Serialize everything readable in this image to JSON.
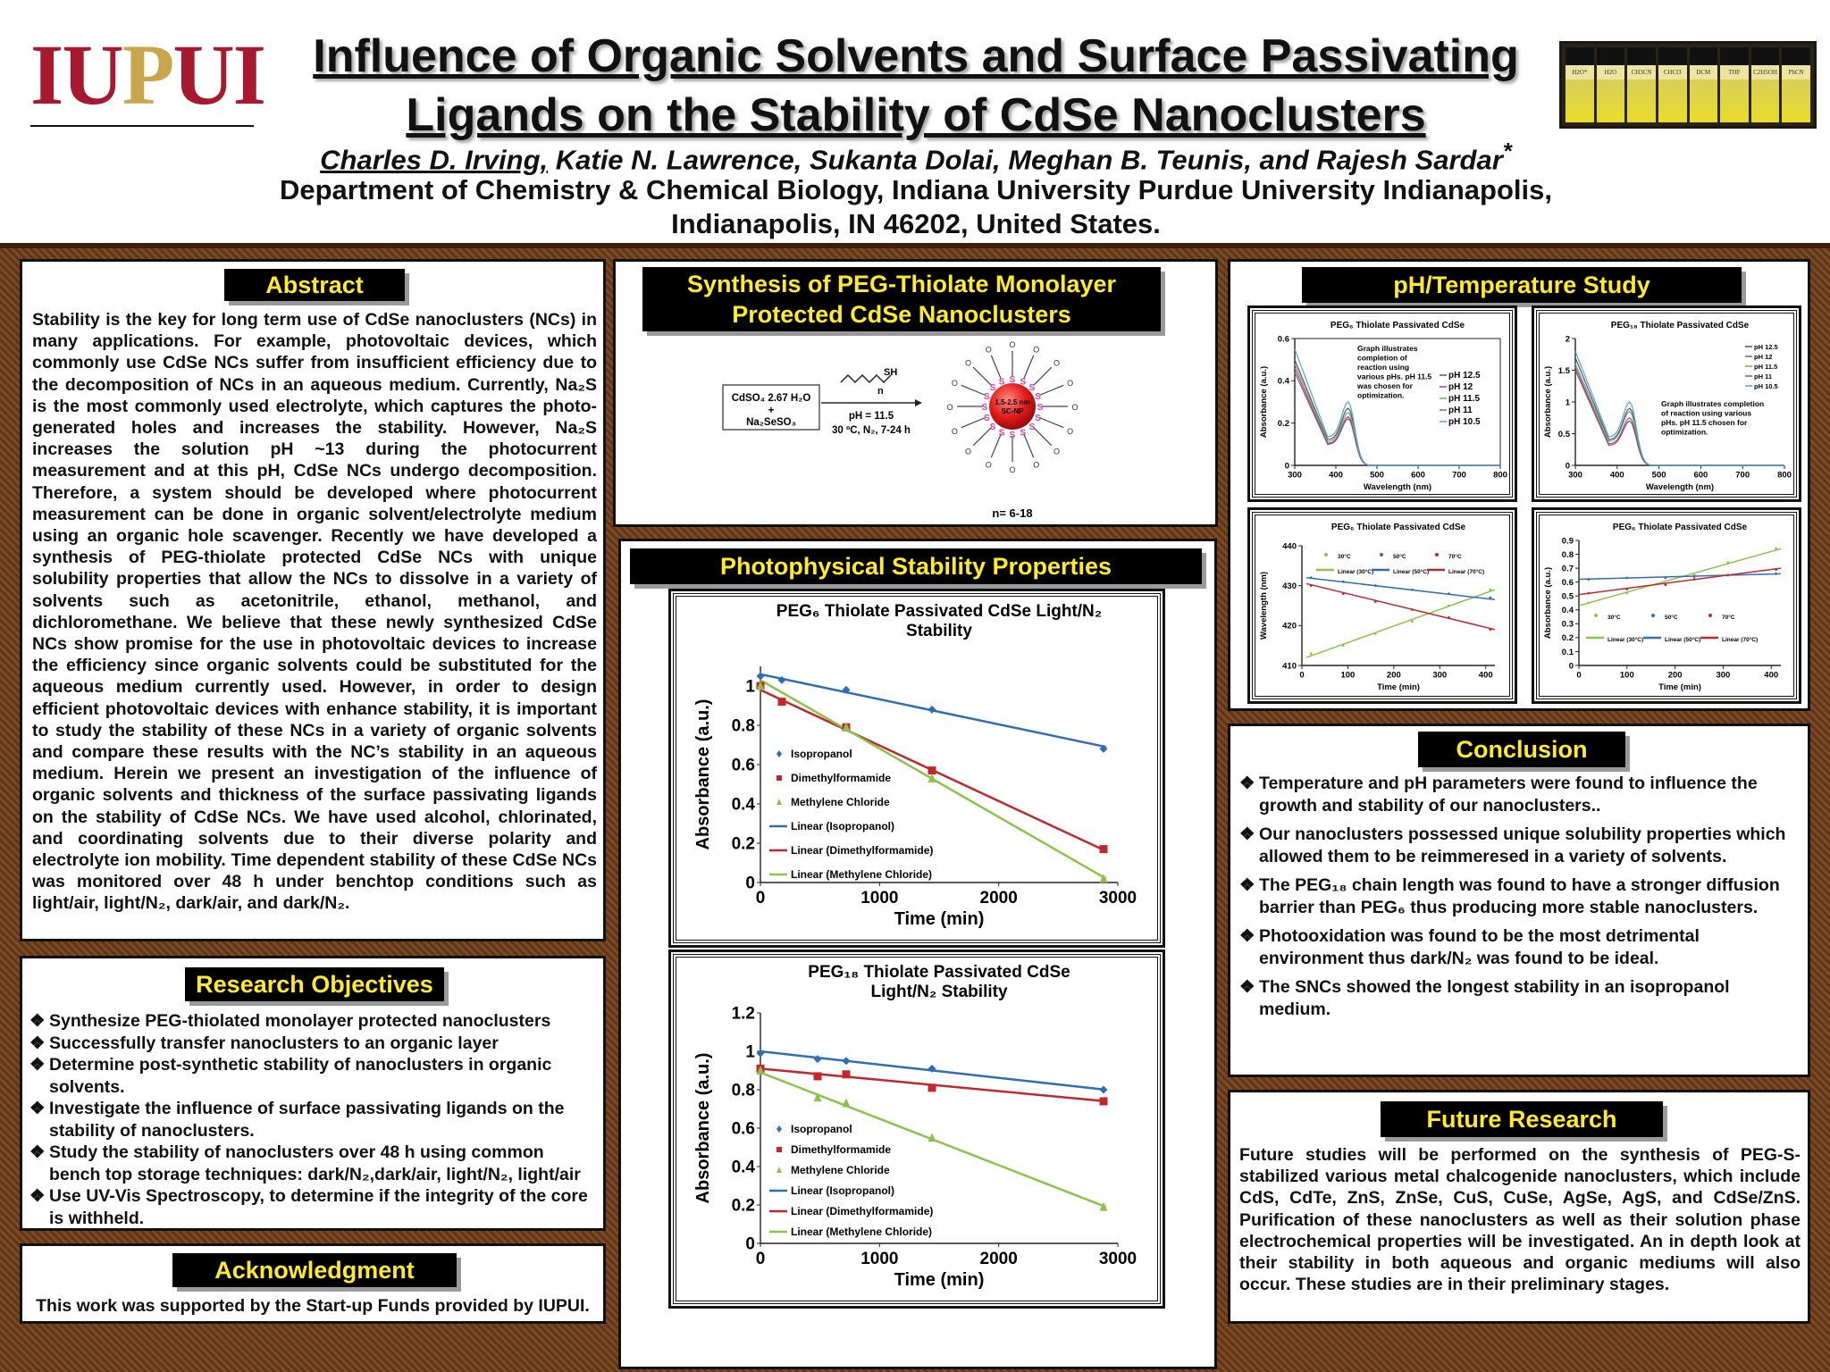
{
  "header": {
    "logo": {
      "iu": "IU",
      "p": "P",
      "ui": "UI"
    },
    "title_line1": "Influence of Organic Solvents and Surface Passivating",
    "title_line2": "Ligands on the Stability of CdSe Nanoclusters",
    "first_author": "Charles D. Irving,",
    "other_authors": " Katie N. Lawrence, Sukanta Dolai, Meghan B. Teunis, and Rajesh Sardar",
    "author_mark": "*",
    "dept_line1": "Department of Chemistry & Chemical Biology, Indiana University Purdue University Indianapolis,",
    "dept_line2": "Indianapolis, IN 46202, United States.",
    "vial_labels": [
      "H2O*",
      "H2O",
      "CH3CN",
      "CHCl3",
      "DCM",
      "THF",
      "C2H5OH",
      "PhCN"
    ]
  },
  "colors": {
    "heading_bg": "#000000",
    "heading_text": "#ffea2c",
    "isopropanol": "#2f6db5",
    "dmf": "#c0282d",
    "mecl": "#8bc34a",
    "bg_brown": "#6b3f1f"
  },
  "abstract": {
    "heading": "Abstract",
    "text": "Stability is the key for long term use of CdSe nanoclusters (NCs) in many applications. For example, photovoltaic devices, which commonly use CdSe NCs suffer from insufficient efficiency due to the decomposition of NCs in an aqueous medium. Currently, Na₂S is the most commonly used electrolyte, which captures the photo-generated holes and increases the stability. However, Na₂S increases the solution pH ~13 during the photocurrent measurement and at this pH, CdSe NCs undergo decomposition. Therefore, a system should be developed where photocurrent measurement can be done in organic solvent/electrolyte medium using an organic hole scavenger. Recently we have developed a synthesis of PEG-thiolate protected CdSe NCs with unique solubility properties that allow the NCs to dissolve in a variety of solvents such as acetonitrile, ethanol, methanol, and dichloromethane. We believe that these newly synthesized CdSe NCs show promise for the use in photovoltaic devices to increase the efficiency since organic solvents could be substituted for the aqueous medium currently used. However, in order to design efficient photovoltaic devices with enhance stability, it is important to study the stability of these NCs in a variety of organic solvents and compare these results with the NC’s stability in an aqueous medium. Herein we present an investigation of the influence of organic solvents and thickness of the surface passivating ligands on the stability of CdSe NCs. We have used alcohol, chlorinated, and coordinating solvents due to their diverse polarity and electrolyte ion mobility. Time dependent stability of these CdSe NCs was monitored over 48 h under benchtop conditions such as light/air, light/N₂, dark/air, and dark/N₂."
  },
  "objectives": {
    "heading": "Research Objectives",
    "mark": "❖",
    "items": [
      "Synthesize PEG-thiolated monolayer protected nanoclusters",
      "Successfully transfer nanoclusters to an organic layer",
      "Determine post-synthetic stability of nanoclusters in organic solvents.",
      "Investigate the influence of surface passivating ligands on the stability of nanoclusters.",
      "Study the stability of nanoclusters over 48 h using common bench top storage techniques: dark/N₂,dark/air, light/N₂, light/air",
      "Use UV-Vis Spectroscopy, to determine if the integrity of the core is withheld."
    ]
  },
  "acknowledgment": {
    "heading": "Acknowledgment",
    "text": "This work was supported by the Start-up Funds provided by IUPUI."
  },
  "synthesis": {
    "heading_line1": "Synthesis of PEG-Thiolate Monolayer",
    "heading_line2": "Protected CdSe Nanoclusters",
    "reagent_line1": "CdSO₄ 2.67 H₂O",
    "reagent_line2": "+",
    "reagent_line3": "Na₂SeSO₃",
    "sh": "SH",
    "n": "n",
    "cond1": "pH = 11.5",
    "cond2": "30 ºC, N₂, 7-24 h",
    "core_label1": "1.5-2.5 nm",
    "core_label2": "SC-NP",
    "s": "S",
    "o": "O",
    "n_range": "n= 6-18"
  },
  "photophys": {
    "heading": "Photophysical Stability Properties"
  },
  "ph_temp": {
    "heading": "pH/Temperature Study"
  },
  "conclusion": {
    "heading": "Conclusion",
    "mark": "❖",
    "items": [
      "Temperature and pH parameters were found to influence the growth and stability of our nanoclusters..",
      "Our nanoclusters possessed unique solubility properties which allowed them to be reimmeresed in a variety of solvents.",
      "The PEG₁₈ chain length was found to have a stronger diffusion barrier than PEG₆ thus producing more stable nanoclusters.",
      "Photooxidation was found to be the most detrimental environment thus dark/N₂ was found to be ideal.",
      "The SNCs showed the longest stability in an isopropanol medium."
    ]
  },
  "future": {
    "heading": "Future Research",
    "text": "Future studies will be performed on the synthesis of PEG-S-stabilized various metal chalcogenide nanoclusters, which include CdS, CdTe, ZnS, ZnSe, CuS, CuSe, AgSe, AgS, and CdSe/ZnS. Purification of these nanoclusters as well as their solution phase electrochemical properties will be investigated. An in depth look at their stability in both aqueous and organic mediums will also occur. These studies are in their preliminary stages."
  },
  "chart_data": [
    {
      "id": "peg6_light",
      "type": "scatter",
      "title": "PEG₆ Thiolate Passivated CdSe Light/N₂ Stability",
      "xlabel": "Time (min)",
      "ylabel": "Absorbance (a.u.)",
      "xlim": [
        0,
        3000
      ],
      "ylim": [
        0,
        1.1
      ],
      "xticks": [
        0,
        1000,
        2000,
        3000
      ],
      "yticks": [
        0,
        0.2,
        0.4,
        0.6,
        0.8,
        1
      ],
      "legend_position": "left",
      "series": [
        {
          "name": "Isopropanol",
          "marker": "diamond",
          "color": "#2f6db5",
          "x": [
            0,
            180,
            720,
            1440,
            2880
          ],
          "y": [
            1.05,
            1.03,
            0.98,
            0.88,
            0.68
          ]
        },
        {
          "name": "Dimethylformamide",
          "marker": "square",
          "color": "#c0282d",
          "x": [
            0,
            180,
            720,
            1440,
            2880
          ],
          "y": [
            1.0,
            0.92,
            0.79,
            0.57,
            0.17
          ]
        },
        {
          "name": "Methylene Chloride",
          "marker": "triangle",
          "color": "#8bc34a",
          "x": [
            0,
            720,
            1440,
            2880
          ],
          "y": [
            1.0,
            0.79,
            0.53,
            0.02
          ]
        }
      ],
      "trendlines": [
        {
          "name": "Linear (Isopropanol)",
          "color": "#2f6db5",
          "x": [
            0,
            2900
          ],
          "y": [
            1.06,
            0.69
          ]
        },
        {
          "name": "Linear (Dimethylformamide)",
          "color": "#c0282d",
          "x": [
            0,
            2900
          ],
          "y": [
            0.98,
            0.16
          ]
        },
        {
          "name": "Linear (Methylene Chloride)",
          "color": "#8bc34a",
          "x": [
            0,
            2900
          ],
          "y": [
            1.03,
            0.02
          ]
        }
      ]
    },
    {
      "id": "peg18_light",
      "type": "scatter",
      "title": "PEG₁₈ Thiolate Passivated CdSe Light/N₂ Stability",
      "xlabel": "Time (min)",
      "ylabel": "Absorbance (a.u.)",
      "xlim": [
        0,
        3000
      ],
      "ylim": [
        0,
        1.2
      ],
      "xticks": [
        0,
        1000,
        2000,
        3000
      ],
      "yticks": [
        0,
        0.2,
        0.4,
        0.6,
        0.8,
        1,
        1.2
      ],
      "legend_position": "left",
      "series": [
        {
          "name": "Isopropanol",
          "marker": "diamond",
          "color": "#2f6db5",
          "x": [
            0,
            480,
            720,
            1440,
            2880
          ],
          "y": [
            0.99,
            0.96,
            0.95,
            0.91,
            0.8
          ]
        },
        {
          "name": "Dimethylformamide",
          "marker": "square",
          "color": "#c0282d",
          "x": [
            0,
            480,
            720,
            1440,
            2880
          ],
          "y": [
            0.91,
            0.87,
            0.88,
            0.81,
            0.74
          ]
        },
        {
          "name": "Methylene Chloride",
          "marker": "triangle",
          "color": "#8bc34a",
          "x": [
            0,
            480,
            720,
            1440,
            2880
          ],
          "y": [
            0.9,
            0.76,
            0.73,
            0.55,
            0.19
          ]
        }
      ],
      "trendlines": [
        {
          "name": "Linear (Isopropanol)",
          "color": "#2f6db5",
          "x": [
            0,
            2900
          ],
          "y": [
            1.0,
            0.8
          ]
        },
        {
          "name": "Linear (Dimethylformamide)",
          "color": "#c0282d",
          "x": [
            0,
            2900
          ],
          "y": [
            0.91,
            0.74
          ]
        },
        {
          "name": "Linear (Methylene Chloride)",
          "color": "#8bc34a",
          "x": [
            0,
            2900
          ],
          "y": [
            0.89,
            0.19
          ]
        }
      ]
    },
    {
      "id": "peg6_ph",
      "type": "line",
      "title": "PEG₆ Thiolate Passivated CdSe",
      "xlabel": "Wavelength (nm)",
      "ylabel": "Absorbance (a.u.)",
      "xlim": [
        300,
        800
      ],
      "ylim": [
        0,
        0.6
      ],
      "xticks": [
        300,
        400,
        500,
        600,
        700,
        800
      ],
      "yticks": [
        0,
        0.2,
        0.4,
        0.6
      ],
      "annotation": "Graph illustrates completion of reaction using various pHs. pH 11.5 was chosen for optimization.",
      "series": [
        {
          "name": "pH 12.5",
          "color": "#4b4f9a",
          "peak": 0.27,
          "start": 0.5
        },
        {
          "name": "pH 12",
          "color": "#b0484a",
          "peak": 0.23,
          "start": 0.46
        },
        {
          "name": "pH 11.5",
          "color": "#84a84c",
          "peak": 0.25,
          "start": 0.48
        },
        {
          "name": "pH 11",
          "color": "#7a5aa0",
          "peak": 0.22,
          "start": 0.44
        },
        {
          "name": "pH 10.5",
          "color": "#4fa8c0",
          "peak": 0.3,
          "start": 0.55
        }
      ]
    },
    {
      "id": "peg18_ph",
      "type": "line",
      "title": "PEG₁₈ Thiolate Passivated CdSe",
      "xlabel": "Wavelength (nm)",
      "ylabel": "Absorbance (a.u.)",
      "xlim": [
        300,
        800
      ],
      "ylim": [
        0,
        2
      ],
      "xticks": [
        300,
        400,
        500,
        600,
        700,
        800
      ],
      "yticks": [
        0,
        0.5,
        1,
        1.5,
        2
      ],
      "annotation": "Graph illustrates completion of reaction using various pHs. pH 11.5 chosen for optimization.",
      "series": [
        {
          "name": "pH 12.5",
          "color": "#4b4f9a",
          "peak": 0.9,
          "start": 1.7
        },
        {
          "name": "pH 12",
          "color": "#b0484a",
          "peak": 0.7,
          "start": 1.5
        },
        {
          "name": "pH 11.5",
          "color": "#84a84c",
          "peak": 0.85,
          "start": 1.6
        },
        {
          "name": "pH 11",
          "color": "#7a5aa0",
          "peak": 0.75,
          "start": 1.55
        },
        {
          "name": "pH 10.5",
          "color": "#4fa8c0",
          "peak": 1.0,
          "start": 1.8
        }
      ]
    },
    {
      "id": "peg6_temp_wl",
      "type": "scatter",
      "title": "PEG₆ Thiolate Passivated CdSe",
      "xlabel": "Time (min)",
      "ylabel": "Wavelength (nm)",
      "xlim": [
        0,
        420
      ],
      "ylim": [
        410,
        440
      ],
      "xticks": [
        0,
        100,
        200,
        300,
        400
      ],
      "yticks": [
        410,
        420,
        430,
        440
      ],
      "legend_position": "top",
      "series": [
        {
          "name": "30°C",
          "color": "#8bc34a",
          "x": [
            20,
            90,
            160,
            240,
            320,
            410
          ],
          "y": [
            413,
            415,
            418,
            421,
            425,
            429
          ]
        },
        {
          "name": "50°C",
          "color": "#2f6db5",
          "x": [
            20,
            90,
            160,
            240,
            320,
            410
          ],
          "y": [
            432,
            431,
            430,
            429,
            428,
            427
          ]
        },
        {
          "name": "70°C",
          "color": "#c0282d",
          "x": [
            20,
            90,
            160,
            240,
            320,
            410
          ],
          "y": [
            430,
            428,
            426,
            424,
            422,
            419
          ]
        }
      ],
      "trendlines": [
        {
          "name": "Linear (30°C)",
          "color": "#8bc34a",
          "x": [
            10,
            420
          ],
          "y": [
            412,
            429
          ]
        },
        {
          "name": "Linear (50°C)",
          "color": "#2f6db5",
          "x": [
            10,
            420
          ],
          "y": [
            432,
            426.5
          ]
        },
        {
          "name": "Linear (70°C)",
          "color": "#c0282d",
          "x": [
            10,
            420
          ],
          "y": [
            430.5,
            419
          ]
        }
      ]
    },
    {
      "id": "peg6_temp_abs",
      "type": "scatter",
      "title": "PEG₆ Thiolate Passivated CdSe",
      "xlabel": "Time (min)",
      "ylabel": "Absorbance (a.u.)",
      "xlim": [
        0,
        420
      ],
      "ylim": [
        0,
        0.9
      ],
      "xticks": [
        0,
        100,
        200,
        300,
        400
      ],
      "yticks": [
        0,
        0.1,
        0.2,
        0.3,
        0.4,
        0.5,
        0.6,
        0.7,
        0.8,
        0.9
      ],
      "legend_position": "bottom",
      "series": [
        {
          "name": "30°C",
          "color": "#8bc34a",
          "x": [
            20,
            100,
            180,
            240,
            310,
            410
          ],
          "y": [
            0.45,
            0.52,
            0.58,
            0.65,
            0.74,
            0.84
          ]
        },
        {
          "name": "50°C",
          "color": "#2f6db5",
          "x": [
            20,
            100,
            180,
            240,
            310,
            410
          ],
          "y": [
            0.62,
            0.63,
            0.63,
            0.64,
            0.65,
            0.66
          ]
        },
        {
          "name": "70°C",
          "color": "#c0282d",
          "x": [
            20,
            100,
            180,
            240,
            310,
            410
          ],
          "y": [
            0.52,
            0.55,
            0.58,
            0.62,
            0.65,
            0.69
          ]
        }
      ],
      "trendlines": [
        {
          "name": "Linear (30°C)",
          "color": "#8bc34a",
          "x": [
            0,
            420
          ],
          "y": [
            0.43,
            0.84
          ]
        },
        {
          "name": "Linear (50°C)",
          "color": "#2f6db5",
          "x": [
            0,
            420
          ],
          "y": [
            0.62,
            0.66
          ]
        },
        {
          "name": "Linear (70°C)",
          "color": "#c0282d",
          "x": [
            0,
            420
          ],
          "y": [
            0.51,
            0.7
          ]
        }
      ]
    }
  ]
}
